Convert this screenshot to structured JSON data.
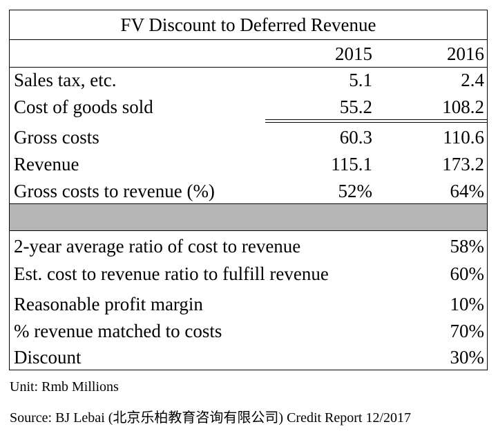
{
  "title": "FV Discount to Deferred Revenue",
  "headers": {
    "y1": "2015",
    "y2": "2016"
  },
  "rows": [
    {
      "label": "Sales tax, etc.",
      "v1": "5.1",
      "v2": "2.4"
    },
    {
      "label": "Cost of goods sold",
      "v1": "55.2",
      "v2": "108.2"
    },
    {
      "label": "Gross costs",
      "v1": "60.3",
      "v2": "110.6"
    },
    {
      "label": "Revenue",
      "v1": "115.1",
      "v2": "173.2"
    },
    {
      "label": "Gross costs to revenue (%)",
      "v1": "52%",
      "v2": "64%"
    }
  ],
  "summary": [
    {
      "label": "2-year average ratio of cost to revenue",
      "value": "58%"
    },
    {
      "label": "Est. cost to revenue ratio to fulfill revenue",
      "value": "60%"
    },
    {
      "label": "Reasonable profit margin",
      "value": "10%"
    },
    {
      "label": "% revenue matched to costs",
      "value": "70%"
    },
    {
      "label": "Discount",
      "value": "30%"
    }
  ],
  "footnotes": {
    "unit": "Unit: Rmb Millions",
    "source": "Source: BJ Lebai (北京乐柏教育咨询有限公司) Credit Report 12/2017"
  }
}
